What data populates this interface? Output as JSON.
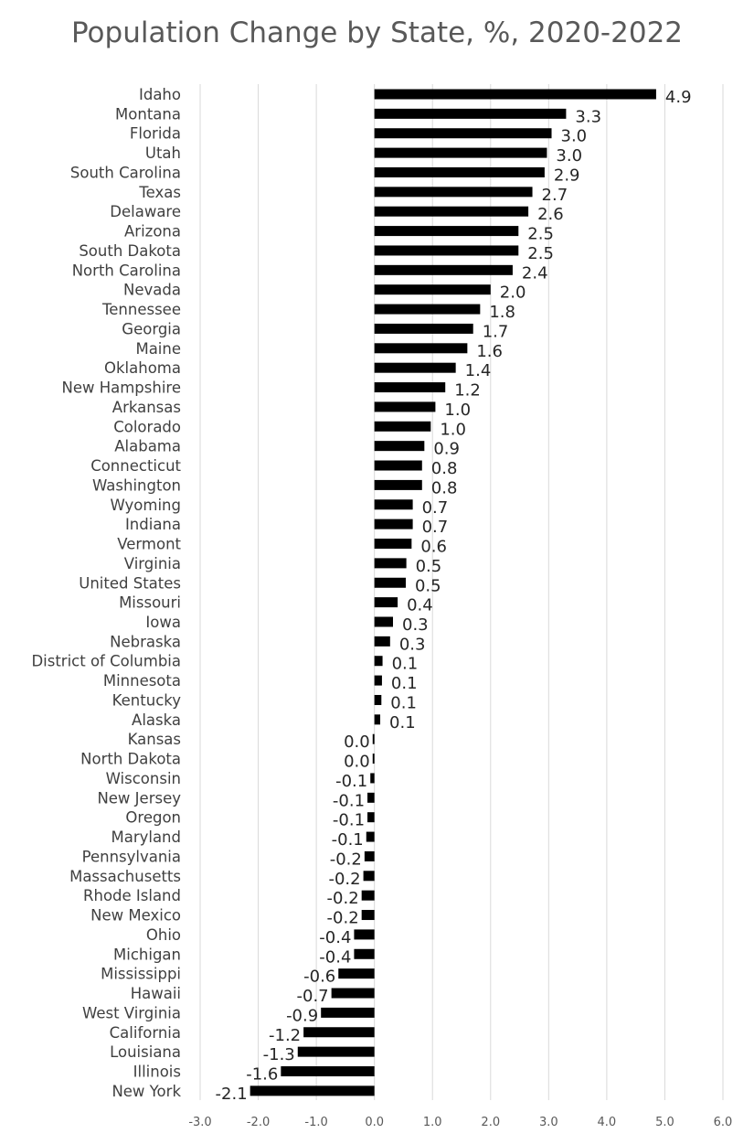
{
  "chart_data": {
    "type": "bar",
    "orientation": "horizontal",
    "title": "Population Change by State, %, 2020-2022",
    "xlabel": "",
    "ylabel": "",
    "xlim": [
      -3.0,
      6.0
    ],
    "x_ticks": [
      "-3.0",
      "-2.0",
      "-1.0",
      "0.0",
      "1.0",
      "2.0",
      "3.0",
      "4.0",
      "5.0",
      "6.0"
    ],
    "grid": true,
    "legend": "none",
    "bar_color": "#000000",
    "categories": [
      "Idaho",
      "Montana",
      "Florida",
      "Utah",
      "South Carolina",
      "Texas",
      "Delaware",
      "Arizona",
      "South Dakota",
      "North Carolina",
      "Nevada",
      "Tennessee",
      "Georgia",
      "Maine",
      "Oklahoma",
      "New Hampshire",
      "Arkansas",
      "Colorado",
      "Alabama",
      "Connecticut",
      "Washington",
      "Wyoming",
      "Indiana",
      "Vermont",
      "Virginia",
      "United States",
      "Missouri",
      "Iowa",
      "Nebraska",
      "District of Columbia",
      "Minnesota",
      "Kentucky",
      "Alaska",
      "Kansas",
      "North Dakota",
      "Wisconsin",
      "New Jersey",
      "Oregon",
      "Maryland",
      "Pennsylvania",
      "Massachusetts",
      "Rhode Island",
      "New Mexico",
      "Ohio",
      "Michigan",
      "Mississippi",
      "Hawaii",
      "West Virginia",
      "California",
      "Louisiana",
      "Illinois",
      "New York"
    ],
    "values": [
      4.85,
      3.3,
      3.05,
      2.97,
      2.93,
      2.72,
      2.65,
      2.48,
      2.48,
      2.38,
      2.0,
      1.82,
      1.7,
      1.6,
      1.4,
      1.22,
      1.05,
      0.97,
      0.86,
      0.82,
      0.82,
      0.66,
      0.66,
      0.64,
      0.55,
      0.54,
      0.4,
      0.32,
      0.27,
      0.14,
      0.13,
      0.12,
      0.1,
      -0.03,
      -0.03,
      -0.07,
      -0.12,
      -0.12,
      -0.14,
      -0.17,
      -0.19,
      -0.22,
      -0.22,
      -0.35,
      -0.35,
      -0.62,
      -0.74,
      -0.92,
      -1.22,
      -1.32,
      -1.61,
      -2.14
    ],
    "value_labels": [
      "4.9",
      "3.3",
      "3.0",
      "3.0",
      "2.9",
      "2.7",
      "2.6",
      "2.5",
      "2.5",
      "2.4",
      "2.0",
      "1.8",
      "1.7",
      "1.6",
      "1.4",
      "1.2",
      "1.0",
      "1.0",
      "0.9",
      "0.8",
      "0.8",
      "0.7",
      "0.7",
      "0.6",
      "0.5",
      "0.5",
      "0.4",
      "0.3",
      "0.3",
      "0.1",
      "0.1",
      "0.1",
      "0.1",
      "0.0",
      "0.0",
      "-0.1",
      "-0.1",
      "-0.1",
      "-0.1",
      "-0.2",
      "-0.2",
      "-0.2",
      "-0.2",
      "-0.4",
      "-0.4",
      "-0.6",
      "-0.7",
      "-0.9",
      "-1.2",
      "-1.3",
      "-1.6",
      "-2.1"
    ]
  }
}
